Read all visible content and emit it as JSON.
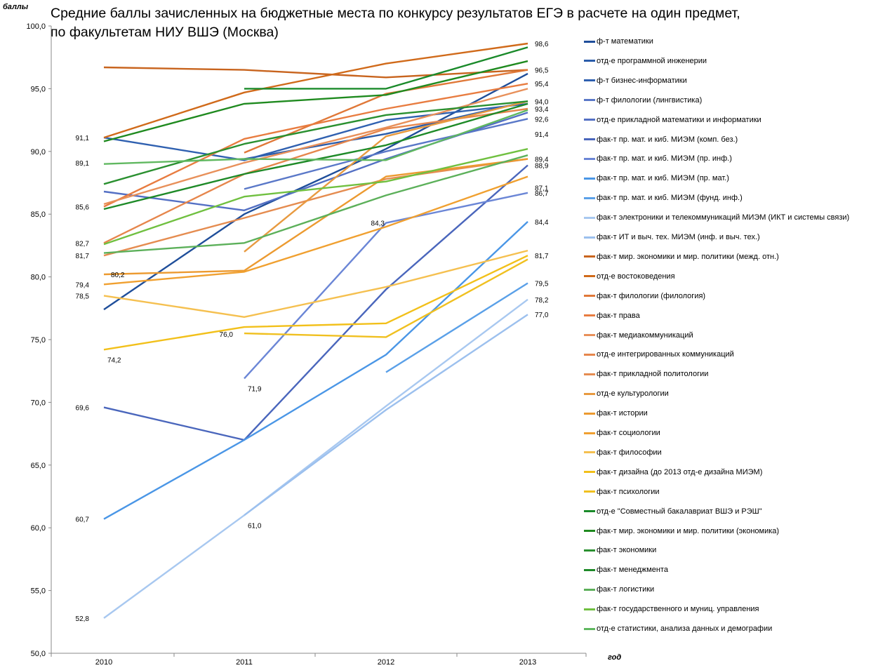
{
  "chart_data": {
    "type": "line",
    "title": "Средние баллы зачисленных на бюджетные места по конкурсу результатов ЕГЭ в расчете на один предмет,",
    "title_line2": "по факультетам НИУ ВШЭ (Москва)",
    "ylabel": "баллы",
    "xlabel": "год",
    "x": [
      "2010",
      "2011",
      "2012",
      "2013"
    ],
    "ylim": [
      50,
      100
    ],
    "yticks": [
      "50,0",
      "55,0",
      "60,0",
      "65,0",
      "70,0",
      "75,0",
      "80,0",
      "85,0",
      "90,0",
      "95,0",
      "100,0"
    ],
    "legend_position": "right",
    "series": [
      {
        "name": "ф-т математики",
        "color": "#1f4e9a",
        "values": [
          77.4,
          85.0,
          90.2,
          96.2
        ]
      },
      {
        "name": "отд-е программной инженерии",
        "color": "#2a5caa",
        "values": [
          null,
          89.4,
          91.4,
          94.0
        ]
      },
      {
        "name": "ф-т бизнес-информатики",
        "color": "#2f60b0",
        "values": [
          91.1,
          89.3,
          92.5,
          93.8
        ]
      },
      {
        "name": "ф-т филологии (лингвистика)",
        "color": "#5a78c8",
        "values": [
          null,
          87.0,
          90.0,
          92.6
        ]
      },
      {
        "name": "отд-е прикладной математики и информатики",
        "color": "#5470c4",
        "values": [
          86.8,
          85.3,
          89.4,
          93.1
        ]
      },
      {
        "name": "фак-т пр. мат. и киб. МИЭМ (комп. без.)",
        "color": "#4a66bc",
        "values": [
          69.6,
          67.0,
          79.0,
          88.9
        ]
      },
      {
        "name": "фак-т пр. мат. и киб. МИЭМ (пр. инф.)",
        "color": "#6b86d6",
        "values": [
          null,
          71.9,
          84.3,
          86.7
        ]
      },
      {
        "name": "фак-т пр. мат. и киб. МИЭМ (пр. мат.)",
        "color": "#4a96e6",
        "values": [
          60.7,
          67.0,
          73.8,
          84.4
        ]
      },
      {
        "name": "фак-т пр. мат. и киб. МИЭМ (фунд. инф.)",
        "color": "#5aa0e8",
        "values": [
          null,
          null,
          72.4,
          79.5
        ]
      },
      {
        "name": "фак-т электроники и телекоммуникаций МИЭМ (ИКТ и системы связи)",
        "color": "#a8c8f0",
        "values": [
          52.8,
          61.0,
          69.7,
          78.2
        ]
      },
      {
        "name": "фак-т ИТ и выч. тех. МИЭМ (инф. и выч. тех.)",
        "color": "#9cc0ee",
        "values": [
          null,
          61.0,
          69.4,
          77.0
        ]
      },
      {
        "name": "фак-т мир. экономики и мир. политики (межд. отн.)",
        "color": "#c8641e",
        "values": [
          96.7,
          96.5,
          95.9,
          96.5
        ]
      },
      {
        "name": "отд-е востоковедения",
        "color": "#d06a1a",
        "values": [
          91.1,
          94.7,
          97.0,
          98.6
        ]
      },
      {
        "name": "фак-т филологии (филология)",
        "color": "#e07838",
        "values": [
          null,
          89.9,
          94.6,
          96.5
        ]
      },
      {
        "name": "фак-т права",
        "color": "#e87c40",
        "values": [
          85.6,
          91.0,
          93.4,
          95.4
        ]
      },
      {
        "name": "фак-т медиакоммуникаций",
        "color": "#e8905a",
        "values": [
          85.8,
          89.1,
          91.9,
          95.0
        ]
      },
      {
        "name": "отд-е интегрированных коммуникаций",
        "color": "#e6864c",
        "values": [
          82.7,
          88.2,
          91.8,
          93.4
        ]
      },
      {
        "name": "фак-т прикладной политологии",
        "color": "#e58c50",
        "values": [
          81.7,
          84.7,
          87.8,
          89.4
        ]
      },
      {
        "name": "отд-е культурологии",
        "color": "#e89a40",
        "values": [
          null,
          82.0,
          91.2,
          94.0
        ]
      },
      {
        "name": "фак-т истории",
        "color": "#ec9a30",
        "values": [
          80.2,
          80.5,
          88.0,
          89.4
        ]
      },
      {
        "name": "фак-т социологии",
        "color": "#f0a030",
        "values": [
          79.4,
          80.4,
          84.0,
          88.0
        ]
      },
      {
        "name": "фак-т философии",
        "color": "#f5c050",
        "values": [
          78.5,
          76.8,
          79.2,
          82.1
        ]
      },
      {
        "name": "фак-т дизайна (до 2013 отд-е дизайна МИЭМ)",
        "color": "#f2c01a",
        "values": [
          74.2,
          76.0,
          76.3,
          81.7
        ]
      },
      {
        "name": "фак-т психологии",
        "color": "#f0c020",
        "values": [
          null,
          75.5,
          75.2,
          81.4
        ]
      },
      {
        "name": "отд-е \"Совместный бакалавриат ВШЭ и РЭШ\"",
        "color": "#1a8a2a",
        "values": [
          null,
          95.0,
          95.0,
          98.3
        ]
      },
      {
        "name": "фак-т мир. экономики и мир. политики (экономика)",
        "color": "#1f8a1f",
        "values": [
          90.8,
          93.8,
          94.5,
          97.2
        ]
      },
      {
        "name": "фак-т экономики",
        "color": "#2a9030",
        "values": [
          87.4,
          90.6,
          92.9,
          94.0
        ]
      },
      {
        "name": "фак-т менеджмента",
        "color": "#1e8a28",
        "values": [
          85.4,
          88.2,
          90.5,
          93.8
        ]
      },
      {
        "name": "фак-т логистики",
        "color": "#5cb05a",
        "values": [
          81.9,
          82.7,
          86.5,
          89.7
        ]
      },
      {
        "name": "фак-т государственного и муниц. управления",
        "color": "#70c040",
        "values": [
          82.6,
          86.4,
          87.6,
          90.2
        ]
      },
      {
        "name": "отд-е статистики, анализа данных и демографии",
        "color": "#60b860",
        "values": [
          89.0,
          89.4,
          89.3,
          93.3
        ]
      }
    ],
    "data_labels": [
      {
        "x": "2010",
        "y": 91.1,
        "text": "91,1",
        "side": "left"
      },
      {
        "x": "2010",
        "y": 89.1,
        "text": "89,1",
        "side": "left"
      },
      {
        "x": "2010",
        "y": 85.6,
        "text": "85,6",
        "side": "left"
      },
      {
        "x": "2010",
        "y": 82.7,
        "text": "82,7",
        "side": "left"
      },
      {
        "x": "2010",
        "y": 81.7,
        "text": "81,7",
        "side": "left"
      },
      {
        "x": "2010",
        "y": 80.2,
        "text": "80,2",
        "side": "right"
      },
      {
        "x": "2010",
        "y": 79.4,
        "text": "79,4",
        "side": "left"
      },
      {
        "x": "2010",
        "y": 78.5,
        "text": "78,5",
        "side": "left"
      },
      {
        "x": "2010",
        "y": 74.2,
        "text": "74,2",
        "side": "below"
      },
      {
        "x": "2010",
        "y": 69.6,
        "text": "69,6",
        "side": "left"
      },
      {
        "x": "2010",
        "y": 60.7,
        "text": "60,7",
        "side": "left"
      },
      {
        "x": "2010",
        "y": 52.8,
        "text": "52,8",
        "side": "left"
      },
      {
        "x": "2011",
        "y": 76.0,
        "text": "76,0",
        "side": "left"
      },
      {
        "x": "2011",
        "y": 71.9,
        "text": "71,9",
        "side": "below"
      },
      {
        "x": "2011",
        "y": 61.0,
        "text": "61,0",
        "side": "below"
      },
      {
        "x": "2012",
        "y": 84.3,
        "text": "84,3",
        "side": "left"
      },
      {
        "x": "2013",
        "y": 98.6,
        "text": "98,6",
        "side": "right"
      },
      {
        "x": "2013",
        "y": 96.5,
        "text": "96,5",
        "side": "right"
      },
      {
        "x": "2013",
        "y": 95.4,
        "text": "95,4",
        "side": "right"
      },
      {
        "x": "2013",
        "y": 94.0,
        "text": "94,0",
        "side": "right"
      },
      {
        "x": "2013",
        "y": 93.4,
        "text": "93,4",
        "side": "right"
      },
      {
        "x": "2013",
        "y": 92.6,
        "text": "92,6",
        "side": "right"
      },
      {
        "x": "2013",
        "y": 91.4,
        "text": "91,4",
        "side": "right"
      },
      {
        "x": "2013",
        "y": 89.4,
        "text": "89,4",
        "side": "right"
      },
      {
        "x": "2013",
        "y": 88.9,
        "text": "88,9",
        "side": "right"
      },
      {
        "x": "2013",
        "y": 87.1,
        "text": "87,1",
        "side": "right"
      },
      {
        "x": "2013",
        "y": 86.7,
        "text": "86,7",
        "side": "right"
      },
      {
        "x": "2013",
        "y": 84.4,
        "text": "84,4",
        "side": "right"
      },
      {
        "x": "2013",
        "y": 81.7,
        "text": "81,7",
        "side": "right"
      },
      {
        "x": "2013",
        "y": 79.5,
        "text": "79,5",
        "side": "right"
      },
      {
        "x": "2013",
        "y": 78.2,
        "text": "78,2",
        "side": "right"
      },
      {
        "x": "2013",
        "y": 77.0,
        "text": "77,0",
        "side": "right"
      }
    ]
  }
}
